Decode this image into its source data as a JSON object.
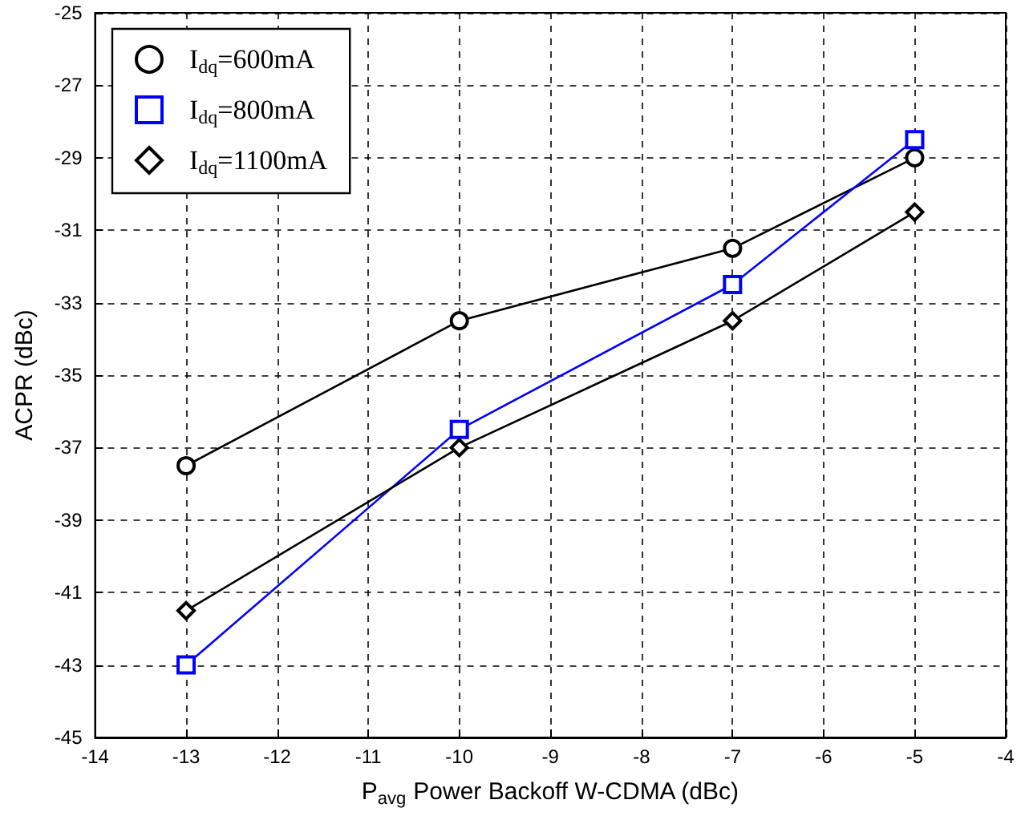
{
  "chart_data": {
    "type": "line",
    "xlabel": "P$_{avg}$ Power Backoff W-CDMA (dBc)",
    "ylabel": "ACPR (dBc)",
    "x": [
      -13,
      -10,
      -7,
      -5
    ],
    "series": [
      {
        "name": "I$_{dq}$=600mA",
        "color": "#000000",
        "marker": "circle",
        "values": [
          -37.5,
          -33.5,
          -31.5,
          -29
        ]
      },
      {
        "name": "I$_{dq}$=800mA",
        "color": "#0000ff",
        "marker": "square",
        "values": [
          -43,
          -36.5,
          -32.5,
          -28.5
        ]
      },
      {
        "name": "I$_{dq}$=1100mA",
        "color": "#000000",
        "marker": "diamond",
        "values": [
          -41.5,
          -37,
          -33.5,
          -30.5
        ]
      }
    ],
    "xlim": [
      -14,
      -4
    ],
    "xticks": [
      -14,
      -13,
      -12,
      -11,
      -10,
      -9,
      -8,
      -7,
      -6,
      -5,
      -4
    ],
    "ylim": [
      -45,
      -25
    ],
    "yticks": [
      -45,
      -43,
      -41,
      -39,
      -37,
      -35,
      -33,
      -31,
      -29,
      -27,
      -25
    ],
    "grid": true,
    "legend": "top left",
    "line_style": "solid"
  }
}
